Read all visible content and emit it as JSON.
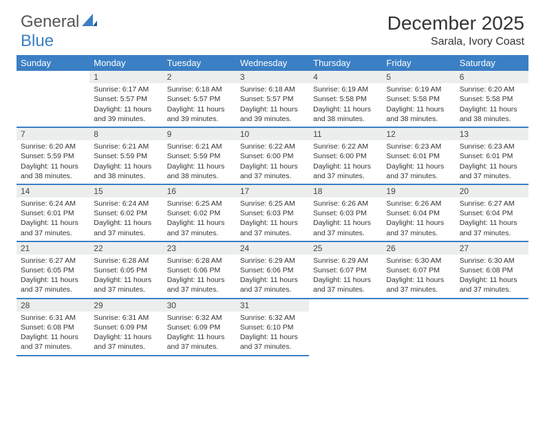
{
  "logo": {
    "text1": "General",
    "text2": "Blue"
  },
  "title": "December 2025",
  "location": "Sarala, Ivory Coast",
  "colors": {
    "header_bg": "#3b7fc4",
    "header_fg": "#ffffff",
    "daynum_bg": "#eceeee",
    "rule": "#3b7fc4"
  },
  "weekdays": [
    "Sunday",
    "Monday",
    "Tuesday",
    "Wednesday",
    "Thursday",
    "Friday",
    "Saturday"
  ],
  "weeks": [
    {
      "days": [
        {
          "n": "",
          "sunrise": "",
          "sunset": "",
          "daylight": ""
        },
        {
          "n": "1",
          "sunrise": "Sunrise: 6:17 AM",
          "sunset": "Sunset: 5:57 PM",
          "daylight": "Daylight: 11 hours and 39 minutes."
        },
        {
          "n": "2",
          "sunrise": "Sunrise: 6:18 AM",
          "sunset": "Sunset: 5:57 PM",
          "daylight": "Daylight: 11 hours and 39 minutes."
        },
        {
          "n": "3",
          "sunrise": "Sunrise: 6:18 AM",
          "sunset": "Sunset: 5:57 PM",
          "daylight": "Daylight: 11 hours and 39 minutes."
        },
        {
          "n": "4",
          "sunrise": "Sunrise: 6:19 AM",
          "sunset": "Sunset: 5:58 PM",
          "daylight": "Daylight: 11 hours and 38 minutes."
        },
        {
          "n": "5",
          "sunrise": "Sunrise: 6:19 AM",
          "sunset": "Sunset: 5:58 PM",
          "daylight": "Daylight: 11 hours and 38 minutes."
        },
        {
          "n": "6",
          "sunrise": "Sunrise: 6:20 AM",
          "sunset": "Sunset: 5:58 PM",
          "daylight": "Daylight: 11 hours and 38 minutes."
        }
      ]
    },
    {
      "days": [
        {
          "n": "7",
          "sunrise": "Sunrise: 6:20 AM",
          "sunset": "Sunset: 5:59 PM",
          "daylight": "Daylight: 11 hours and 38 minutes."
        },
        {
          "n": "8",
          "sunrise": "Sunrise: 6:21 AM",
          "sunset": "Sunset: 5:59 PM",
          "daylight": "Daylight: 11 hours and 38 minutes."
        },
        {
          "n": "9",
          "sunrise": "Sunrise: 6:21 AM",
          "sunset": "Sunset: 5:59 PM",
          "daylight": "Daylight: 11 hours and 38 minutes."
        },
        {
          "n": "10",
          "sunrise": "Sunrise: 6:22 AM",
          "sunset": "Sunset: 6:00 PM",
          "daylight": "Daylight: 11 hours and 37 minutes."
        },
        {
          "n": "11",
          "sunrise": "Sunrise: 6:22 AM",
          "sunset": "Sunset: 6:00 PM",
          "daylight": "Daylight: 11 hours and 37 minutes."
        },
        {
          "n": "12",
          "sunrise": "Sunrise: 6:23 AM",
          "sunset": "Sunset: 6:01 PM",
          "daylight": "Daylight: 11 hours and 37 minutes."
        },
        {
          "n": "13",
          "sunrise": "Sunrise: 6:23 AM",
          "sunset": "Sunset: 6:01 PM",
          "daylight": "Daylight: 11 hours and 37 minutes."
        }
      ]
    },
    {
      "days": [
        {
          "n": "14",
          "sunrise": "Sunrise: 6:24 AM",
          "sunset": "Sunset: 6:01 PM",
          "daylight": "Daylight: 11 hours and 37 minutes."
        },
        {
          "n": "15",
          "sunrise": "Sunrise: 6:24 AM",
          "sunset": "Sunset: 6:02 PM",
          "daylight": "Daylight: 11 hours and 37 minutes."
        },
        {
          "n": "16",
          "sunrise": "Sunrise: 6:25 AM",
          "sunset": "Sunset: 6:02 PM",
          "daylight": "Daylight: 11 hours and 37 minutes."
        },
        {
          "n": "17",
          "sunrise": "Sunrise: 6:25 AM",
          "sunset": "Sunset: 6:03 PM",
          "daylight": "Daylight: 11 hours and 37 minutes."
        },
        {
          "n": "18",
          "sunrise": "Sunrise: 6:26 AM",
          "sunset": "Sunset: 6:03 PM",
          "daylight": "Daylight: 11 hours and 37 minutes."
        },
        {
          "n": "19",
          "sunrise": "Sunrise: 6:26 AM",
          "sunset": "Sunset: 6:04 PM",
          "daylight": "Daylight: 11 hours and 37 minutes."
        },
        {
          "n": "20",
          "sunrise": "Sunrise: 6:27 AM",
          "sunset": "Sunset: 6:04 PM",
          "daylight": "Daylight: 11 hours and 37 minutes."
        }
      ]
    },
    {
      "days": [
        {
          "n": "21",
          "sunrise": "Sunrise: 6:27 AM",
          "sunset": "Sunset: 6:05 PM",
          "daylight": "Daylight: 11 hours and 37 minutes."
        },
        {
          "n": "22",
          "sunrise": "Sunrise: 6:28 AM",
          "sunset": "Sunset: 6:05 PM",
          "daylight": "Daylight: 11 hours and 37 minutes."
        },
        {
          "n": "23",
          "sunrise": "Sunrise: 6:28 AM",
          "sunset": "Sunset: 6:06 PM",
          "daylight": "Daylight: 11 hours and 37 minutes."
        },
        {
          "n": "24",
          "sunrise": "Sunrise: 6:29 AM",
          "sunset": "Sunset: 6:06 PM",
          "daylight": "Daylight: 11 hours and 37 minutes."
        },
        {
          "n": "25",
          "sunrise": "Sunrise: 6:29 AM",
          "sunset": "Sunset: 6:07 PM",
          "daylight": "Daylight: 11 hours and 37 minutes."
        },
        {
          "n": "26",
          "sunrise": "Sunrise: 6:30 AM",
          "sunset": "Sunset: 6:07 PM",
          "daylight": "Daylight: 11 hours and 37 minutes."
        },
        {
          "n": "27",
          "sunrise": "Sunrise: 6:30 AM",
          "sunset": "Sunset: 6:08 PM",
          "daylight": "Daylight: 11 hours and 37 minutes."
        }
      ]
    },
    {
      "days": [
        {
          "n": "28",
          "sunrise": "Sunrise: 6:31 AM",
          "sunset": "Sunset: 6:08 PM",
          "daylight": "Daylight: 11 hours and 37 minutes."
        },
        {
          "n": "29",
          "sunrise": "Sunrise: 6:31 AM",
          "sunset": "Sunset: 6:09 PM",
          "daylight": "Daylight: 11 hours and 37 minutes."
        },
        {
          "n": "30",
          "sunrise": "Sunrise: 6:32 AM",
          "sunset": "Sunset: 6:09 PM",
          "daylight": "Daylight: 11 hours and 37 minutes."
        },
        {
          "n": "31",
          "sunrise": "Sunrise: 6:32 AM",
          "sunset": "Sunset: 6:10 PM",
          "daylight": "Daylight: 11 hours and 37 minutes."
        },
        {
          "n": "",
          "sunrise": "",
          "sunset": "",
          "daylight": ""
        },
        {
          "n": "",
          "sunrise": "",
          "sunset": "",
          "daylight": ""
        },
        {
          "n": "",
          "sunrise": "",
          "sunset": "",
          "daylight": ""
        }
      ]
    }
  ]
}
